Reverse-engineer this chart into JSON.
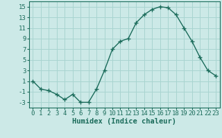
{
  "x": [
    0,
    1,
    2,
    3,
    4,
    5,
    6,
    7,
    8,
    9,
    10,
    11,
    12,
    13,
    14,
    15,
    16,
    17,
    18,
    19,
    20,
    21,
    22,
    23
  ],
  "y": [
    1,
    -0.5,
    -0.8,
    -1.5,
    -2.5,
    -1.5,
    -3,
    -3,
    -0.5,
    3,
    7,
    8.5,
    9,
    12,
    13.5,
    14.5,
    15,
    14.8,
    13.5,
    11,
    8.5,
    5.5,
    3,
    2
  ],
  "line_color": "#1a6b5a",
  "marker": "+",
  "bg_color": "#cce9e7",
  "grid_color": "#a8d4d0",
  "xlabel": "Humidex (Indice chaleur)",
  "ylim": [
    -4,
    16
  ],
  "yticks": [
    15,
    13,
    11,
    9,
    7,
    5,
    3,
    1,
    -1,
    -3
  ],
  "ytick_labels": [
    "15",
    "13",
    "11",
    "9",
    "7",
    "5",
    "3",
    "1",
    "-1",
    "-3"
  ],
  "xticks": [
    0,
    1,
    2,
    3,
    4,
    5,
    6,
    7,
    8,
    9,
    10,
    11,
    12,
    13,
    14,
    15,
    16,
    17,
    18,
    19,
    20,
    21,
    22,
    23
  ],
  "xlabel_fontsize": 7.5,
  "tick_fontsize": 6.5,
  "line_width": 1.0,
  "marker_size": 4
}
